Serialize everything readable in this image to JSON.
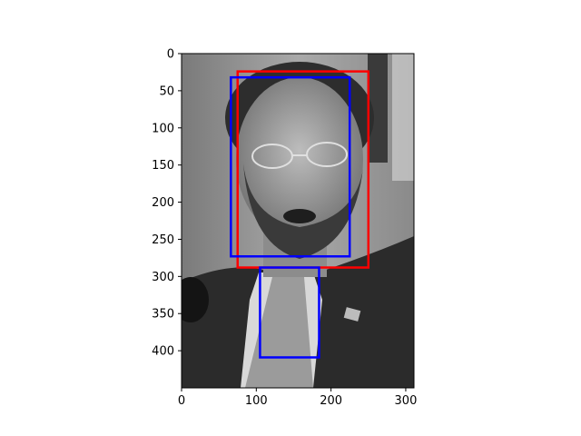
{
  "figure": {
    "background": "#ffffff",
    "image": {
      "description_icon": "grayscale-portrait-photo",
      "extent_x": [
        0,
        311
      ],
      "extent_y": [
        0,
        450
      ]
    }
  },
  "chart_data": {
    "type": "scatter",
    "title": "",
    "xlabel": "",
    "ylabel": "",
    "xlim": [
      0,
      311
    ],
    "ylim": [
      450,
      0
    ],
    "y_inverted": true,
    "x_ticks": [
      0,
      100,
      200,
      300
    ],
    "y_ticks": [
      0,
      50,
      100,
      150,
      200,
      250,
      300,
      350,
      400
    ],
    "grid": false,
    "series": [
      {
        "color": "#ff0000",
        "boxes": [
          {
            "x0": 75,
            "y0": 24,
            "x1": 250,
            "y1": 288
          }
        ]
      },
      {
        "color": "#0000ff",
        "boxes": [
          {
            "x0": 66,
            "y0": 32,
            "x1": 225,
            "y1": 273
          },
          {
            "x0": 105,
            "y0": 288,
            "x1": 184,
            "y1": 409
          }
        ]
      }
    ]
  }
}
